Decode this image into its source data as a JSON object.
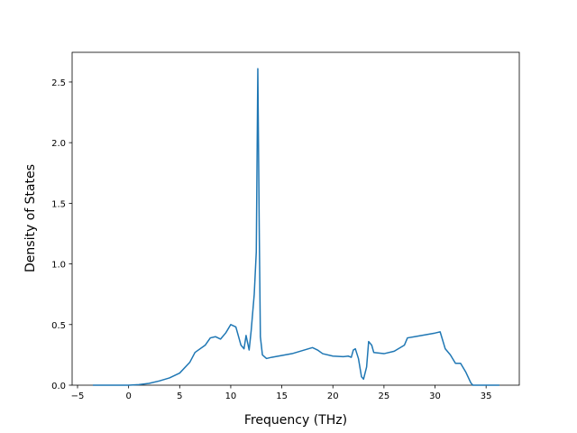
{
  "chart_data": {
    "type": "line",
    "x_label": "Frequency (THz)",
    "y_label": "Density of States",
    "x": [
      -3.5,
      0,
      1,
      2,
      3,
      4,
      5,
      6,
      6.5,
      7.5,
      8,
      8.5,
      9,
      9.5,
      10,
      10.5,
      11,
      11.3,
      11.5,
      11.8,
      12,
      12.3,
      12.5,
      12.65,
      12.8,
      12.9,
      13.1,
      13.5,
      14,
      16,
      18,
      18.5,
      19,
      20,
      21,
      21.5,
      21.8,
      22,
      22.2,
      22.5,
      22.8,
      23,
      23.3,
      23.5,
      23.8,
      24,
      25,
      26,
      27,
      27.3,
      28,
      30,
      30.5,
      31,
      31.5,
      32,
      32.5,
      33,
      33.5,
      33.7,
      36.3
    ],
    "values": [
      0,
      0,
      0.005,
      0.015,
      0.035,
      0.06,
      0.1,
      0.19,
      0.27,
      0.33,
      0.39,
      0.4,
      0.38,
      0.43,
      0.5,
      0.48,
      0.33,
      0.3,
      0.41,
      0.29,
      0.45,
      0.75,
      1.1,
      2.61,
      1.2,
      0.4,
      0.25,
      0.22,
      0.23,
      0.26,
      0.31,
      0.29,
      0.26,
      0.24,
      0.235,
      0.24,
      0.23,
      0.29,
      0.3,
      0.22,
      0.07,
      0.05,
      0.15,
      0.36,
      0.33,
      0.27,
      0.26,
      0.28,
      0.33,
      0.39,
      0.4,
      0.43,
      0.44,
      0.3,
      0.25,
      0.18,
      0.18,
      0.11,
      0.02,
      0,
      0
    ],
    "color": "#1f77b4",
    "xlim": [
      -5.53,
      38.25
    ],
    "xticks": [
      {
        "value": -5,
        "label": "−5"
      },
      0,
      5,
      10,
      15,
      20,
      25,
      30,
      35
    ],
    "ylim": [
      0,
      2.745
    ],
    "yticks": [
      {
        "value": 0,
        "label": "0.0"
      },
      {
        "value": 0.5,
        "label": "0.5"
      },
      {
        "value": 1,
        "label": "1.0"
      },
      {
        "value": 1.5,
        "label": "1.5"
      },
      {
        "value": 2,
        "label": "2.0"
      },
      {
        "value": 2.5,
        "label": "2.5"
      }
    ],
    "grid": false
  }
}
